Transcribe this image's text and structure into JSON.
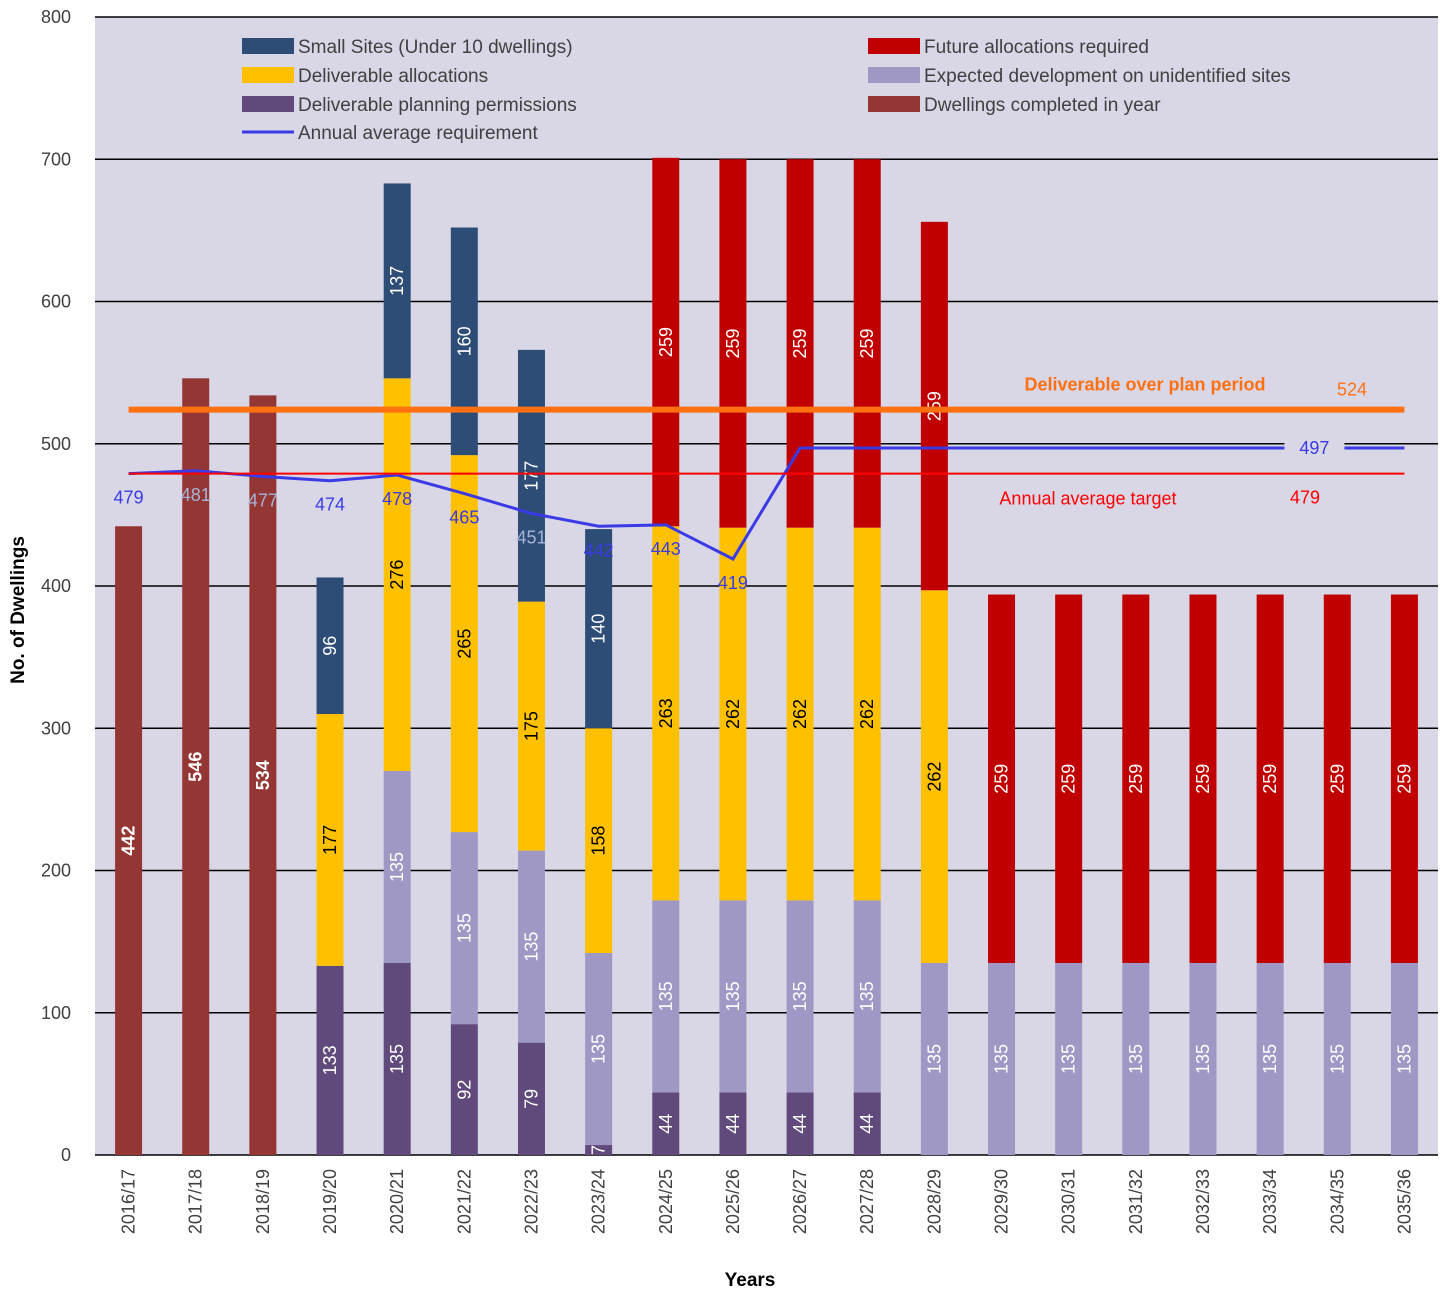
{
  "chart_data": {
    "type": "bar",
    "stacked": true,
    "title": "",
    "xlabel": "Years",
    "ylabel": "No. of Dwellings",
    "ylim": [
      0,
      800
    ],
    "yticks": [
      0,
      100,
      200,
      300,
      400,
      500,
      600,
      700,
      800
    ],
    "grid": true,
    "background_color": "#d9d6e6",
    "categories": [
      "2016/17",
      "2017/18",
      "2018/19",
      "2019/20",
      "2020/21",
      "2021/22",
      "2022/23",
      "2023/24",
      "2024/25",
      "2025/26",
      "2026/27",
      "2027/28",
      "2028/29",
      "2029/30",
      "2030/31",
      "2031/32",
      "2032/33",
      "2033/34",
      "2034/35",
      "2035/36"
    ],
    "series": [
      {
        "name": "Dwellings completed in year",
        "color": "#943634",
        "label_color": "#ffffff",
        "label_bold": true,
        "values": [
          442,
          546,
          534,
          null,
          null,
          null,
          null,
          null,
          null,
          null,
          null,
          null,
          null,
          null,
          null,
          null,
          null,
          null,
          null,
          null
        ]
      },
      {
        "name": "Deliverable planning permissions",
        "color": "#604a7b",
        "label_color": "#ffffff",
        "values": [
          null,
          null,
          null,
          133,
          135,
          92,
          79,
          7,
          44,
          44,
          44,
          44,
          null,
          null,
          null,
          null,
          null,
          null,
          null,
          null
        ]
      },
      {
        "name": "Expected development on unidentified sites",
        "color": "#9f98c5",
        "label_color": "#ffffff",
        "values": [
          null,
          null,
          null,
          null,
          135,
          135,
          135,
          135,
          135,
          135,
          135,
          135,
          135,
          135,
          135,
          135,
          135,
          135,
          135,
          135
        ]
      },
      {
        "name": "Deliverable allocations",
        "color": "#ffc000",
        "label_color": "#000000",
        "values": [
          null,
          null,
          null,
          177,
          276,
          265,
          175,
          158,
          263,
          262,
          262,
          262,
          262,
          null,
          null,
          null,
          null,
          null,
          null,
          null
        ]
      },
      {
        "name": "Small Sites (Under 10 dwellings)",
        "color": "#2e4d76",
        "label_color": "#ffffff",
        "values": [
          null,
          null,
          null,
          96,
          137,
          160,
          177,
          140,
          null,
          null,
          null,
          null,
          null,
          null,
          null,
          null,
          null,
          null,
          null,
          null
        ]
      },
      {
        "name": "Future allocations required",
        "color": "#c00000",
        "label_color": "#ffffff",
        "values": [
          null,
          null,
          null,
          null,
          null,
          null,
          null,
          null,
          259,
          259,
          259,
          259,
          259,
          259,
          259,
          259,
          259,
          259,
          259,
          259
        ]
      }
    ],
    "lines": [
      {
        "name": "Annual average requirement",
        "color": "#3a3ae6",
        "values": [
          479,
          481,
          477,
          474,
          478,
          465,
          451,
          442,
          443,
          419,
          497,
          497,
          497,
          497,
          497,
          497,
          497,
          497,
          497,
          497
        ],
        "point_labels": [
          "479",
          "481",
          "477",
          "474",
          "478",
          "465",
          "451",
          "442",
          "443",
          "419",
          "",
          "",
          "",
          "",
          "",
          "",
          "",
          "",
          "",
          "497"
        ],
        "label_colors": [
          "#3a3ae6",
          "#a6b4d8",
          "#a6b4d8",
          "#3a3ae6",
          "#3a3ae6",
          "#3a3ae6",
          "#a6b4d8",
          "#3a3ae6",
          "#3a3ae6",
          "#3a3ae6",
          "#3a3ae6",
          "#3a3ae6",
          "#3a3ae6",
          "#3a3ae6",
          "#3a3ae6",
          "#3a3ae6",
          "#3a3ae6",
          "#3a3ae6",
          "#3a3ae6",
          "#3a3ae6"
        ]
      },
      {
        "name": "Deliverable over plan period",
        "color": "#ff7010",
        "value": 524,
        "value_label": "524",
        "thick": true
      },
      {
        "name": "Annual average target",
        "color": "#ff0000",
        "value": 479,
        "value_label": "479"
      }
    ],
    "legend_position": "top",
    "legend": [
      {
        "label": "Small Sites (Under 10 dwellings)",
        "color": "#2e4d76",
        "kind": "box"
      },
      {
        "label": "Deliverable allocations",
        "color": "#ffc000",
        "kind": "box"
      },
      {
        "label": "Deliverable planning permissions",
        "color": "#604a7b",
        "kind": "box"
      },
      {
        "label": "Annual average requirement",
        "color": "#3a3ae6",
        "kind": "line"
      },
      {
        "label": "Future allocations required",
        "color": "#c00000",
        "kind": "box"
      },
      {
        "label": "Expected development on unidentified sites",
        "color": "#9f98c5",
        "kind": "box"
      },
      {
        "label": "Dwellings completed in year",
        "color": "#943634",
        "kind": "box"
      }
    ],
    "annotations": [
      {
        "text": "Deliverable over plan period",
        "color": "#ff7010",
        "bold": true
      },
      {
        "text": "Annual average target",
        "color": "#ff0000",
        "bold": false
      }
    ]
  }
}
